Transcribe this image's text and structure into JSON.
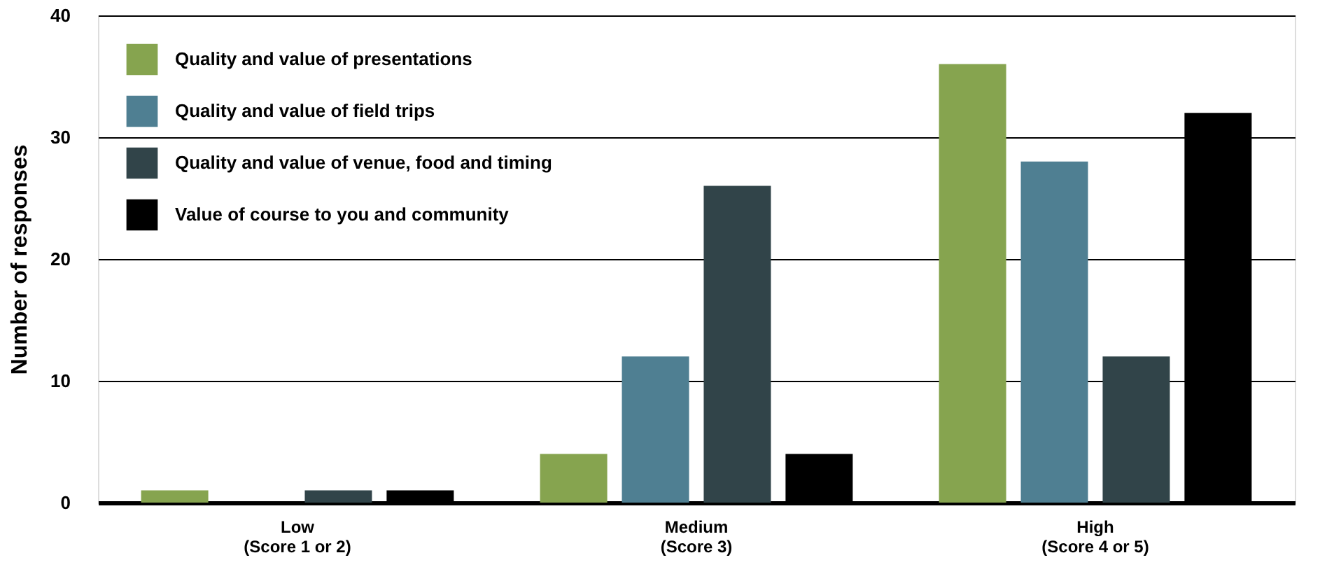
{
  "chart_data": {
    "type": "bar",
    "ylabel": "Number of responses",
    "categories": [
      "Low\n(Score 1 or 2)",
      "Medium\n(Score 3)",
      "High\n(Score 4 or 5)"
    ],
    "series": [
      {
        "name": "Quality and value of presentations",
        "color": "#86a44f",
        "values": [
          1,
          4,
          36
        ]
      },
      {
        "name": "Quality and value of field trips",
        "color": "#4f7f92",
        "values": [
          0,
          12,
          28
        ]
      },
      {
        "name": "Quality and value of venue, food and timing",
        "color": "#314449",
        "values": [
          1,
          26,
          12
        ]
      },
      {
        "name": "Value of course to you and community",
        "color": "#000000",
        "values": [
          1,
          4,
          32
        ]
      }
    ],
    "ylim": [
      0,
      40
    ],
    "yticks": [
      0,
      10,
      20,
      30,
      40
    ],
    "grid": "y",
    "legend": "top left"
  }
}
